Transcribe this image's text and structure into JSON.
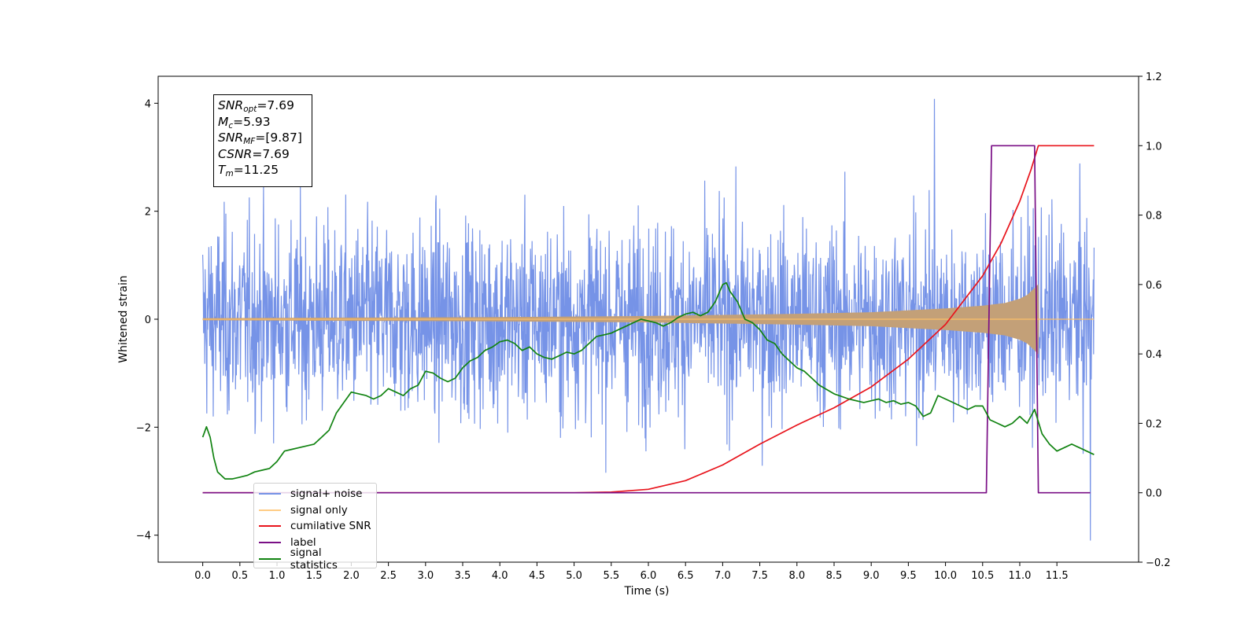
{
  "chart_data": {
    "type": "line",
    "xlabel": "Time (s)",
    "ylabel": "Whitened strain",
    "y2label": "",
    "xlim": [
      -0.6,
      12.6
    ],
    "ylim": [
      -4.5,
      4.5
    ],
    "y2lim": [
      -0.2,
      1.2
    ],
    "x_ticks": [
      0.0,
      0.5,
      1.0,
      1.5,
      2.0,
      2.5,
      3.0,
      3.5,
      4.0,
      4.5,
      5.0,
      5.5,
      6.0,
      6.5,
      7.0,
      7.5,
      8.0,
      8.5,
      9.0,
      9.5,
      10.0,
      10.5,
      11.0,
      11.5
    ],
    "y_ticks": [
      4,
      2,
      0,
      -2,
      -4
    ],
    "y2_ticks": [
      1.2,
      1.0,
      0.8,
      0.6,
      0.4,
      0.2,
      0.0,
      -0.2
    ],
    "grid": false,
    "legend_position": "lower-left",
    "annotation": [
      {
        "sym": "SNR",
        "sub": "opt",
        "value": "=7.69"
      },
      {
        "sym": "M",
        "sub": "c",
        "value": "=5.93"
      },
      {
        "sym": "SNR",
        "sub": "MF",
        "value": "=[9.87]"
      },
      {
        "sym": "CSNR",
        "sub": "",
        "value": "=7.69"
      },
      {
        "sym": "T",
        "sub": "m",
        "value": "=11.25"
      }
    ],
    "series": [
      {
        "name": "signal+ noise",
        "color": "#6f8de6",
        "axis": "left",
        "description_values": {
          "std": 0.9,
          "x_start": 0.0,
          "x_end": 12.0,
          "max": 4.08,
          "max_at": 9.85,
          "min": -4.1,
          "min_at": 11.95
        }
      },
      {
        "name": "signal only",
        "color": "#ffbf66",
        "axis": "left",
        "envelope_x": [
          0.0,
          2.0,
          4.0,
          6.0,
          7.0,
          8.0,
          9.0,
          10.0,
          10.5,
          10.8,
          11.0,
          11.1,
          11.2,
          11.25,
          11.26,
          12.0
        ],
        "envelope_y": [
          0.02,
          0.03,
          0.04,
          0.06,
          0.08,
          0.1,
          0.13,
          0.2,
          0.25,
          0.3,
          0.38,
          0.45,
          0.58,
          0.65,
          0.0,
          0.0
        ]
      },
      {
        "name": "cumilative SNR",
        "color": "#e8141c",
        "axis": "right",
        "x": [
          0.0,
          5.0,
          5.5,
          6.0,
          6.5,
          7.0,
          7.5,
          8.0,
          8.5,
          9.0,
          9.5,
          10.0,
          10.5,
          10.75,
          11.0,
          11.15,
          11.25,
          12.0
        ],
        "y": [
          0.0,
          0.0,
          0.002,
          0.01,
          0.035,
          0.08,
          0.14,
          0.195,
          0.245,
          0.305,
          0.385,
          0.485,
          0.625,
          0.72,
          0.84,
          0.93,
          1.0,
          1.0
        ]
      },
      {
        "name": "label",
        "color": "#7a0f86",
        "axis": "right",
        "x": [
          0.0,
          10.55,
          10.62,
          11.2,
          11.25,
          11.95
        ],
        "y": [
          0.0,
          0.0,
          1.0,
          1.0,
          0.0,
          0.0
        ]
      },
      {
        "name": "signal statistics",
        "color": "#118311",
        "axis": "right",
        "x": [
          0.0,
          0.05,
          0.1,
          0.15,
          0.2,
          0.3,
          0.4,
          0.5,
          0.6,
          0.7,
          0.8,
          0.9,
          1.0,
          1.1,
          1.2,
          1.3,
          1.5,
          1.6,
          1.7,
          1.8,
          1.9,
          2.0,
          2.1,
          2.2,
          2.3,
          2.4,
          2.5,
          2.6,
          2.7,
          2.8,
          2.9,
          3.0,
          3.1,
          3.2,
          3.3,
          3.4,
          3.5,
          3.6,
          3.7,
          3.8,
          3.9,
          4.0,
          4.1,
          4.2,
          4.3,
          4.4,
          4.5,
          4.6,
          4.7,
          4.8,
          4.9,
          5.0,
          5.1,
          5.2,
          5.3,
          5.4,
          5.5,
          5.6,
          5.7,
          5.8,
          5.9,
          6.0,
          6.1,
          6.2,
          6.3,
          6.4,
          6.5,
          6.6,
          6.7,
          6.8,
          6.9,
          7.0,
          7.05,
          7.1,
          7.2,
          7.3,
          7.4,
          7.5,
          7.6,
          7.7,
          7.8,
          7.9,
          8.0,
          8.1,
          8.2,
          8.3,
          8.5,
          8.7,
          8.9,
          9.0,
          9.1,
          9.2,
          9.3,
          9.4,
          9.5,
          9.6,
          9.7,
          9.8,
          9.9,
          10.0,
          10.1,
          10.2,
          10.3,
          10.4,
          10.5,
          10.6,
          10.7,
          10.8,
          10.9,
          11.0,
          11.1,
          11.2,
          11.3,
          11.4,
          11.5,
          11.6,
          11.7,
          11.8,
          11.9,
          12.0
        ],
        "y": [
          0.16,
          0.19,
          0.16,
          0.1,
          0.06,
          0.04,
          0.04,
          0.045,
          0.05,
          0.06,
          0.065,
          0.07,
          0.09,
          0.12,
          0.125,
          0.13,
          0.14,
          0.16,
          0.18,
          0.23,
          0.26,
          0.29,
          0.285,
          0.28,
          0.27,
          0.28,
          0.3,
          0.29,
          0.28,
          0.3,
          0.31,
          0.35,
          0.345,
          0.33,
          0.32,
          0.33,
          0.36,
          0.38,
          0.39,
          0.41,
          0.42,
          0.435,
          0.44,
          0.43,
          0.41,
          0.42,
          0.4,
          0.39,
          0.385,
          0.395,
          0.405,
          0.4,
          0.41,
          0.43,
          0.45,
          0.455,
          0.46,
          0.47,
          0.48,
          0.49,
          0.5,
          0.495,
          0.49,
          0.48,
          0.49,
          0.505,
          0.515,
          0.52,
          0.51,
          0.52,
          0.55,
          0.6,
          0.605,
          0.58,
          0.55,
          0.5,
          0.49,
          0.47,
          0.44,
          0.43,
          0.4,
          0.38,
          0.36,
          0.35,
          0.33,
          0.31,
          0.285,
          0.27,
          0.26,
          0.265,
          0.27,
          0.26,
          0.265,
          0.255,
          0.26,
          0.25,
          0.22,
          0.23,
          0.28,
          0.27,
          0.26,
          0.25,
          0.24,
          0.25,
          0.25,
          0.21,
          0.2,
          0.19,
          0.2,
          0.22,
          0.2,
          0.24,
          0.17,
          0.14,
          0.12,
          0.13,
          0.14,
          0.13,
          0.12,
          0.11
        ]
      }
    ],
    "legend": [
      "signal+ noise",
      "signal only",
      "cumilative SNR",
      "label",
      "signal statistics"
    ],
    "legend_hidden_label": "signal only"
  }
}
